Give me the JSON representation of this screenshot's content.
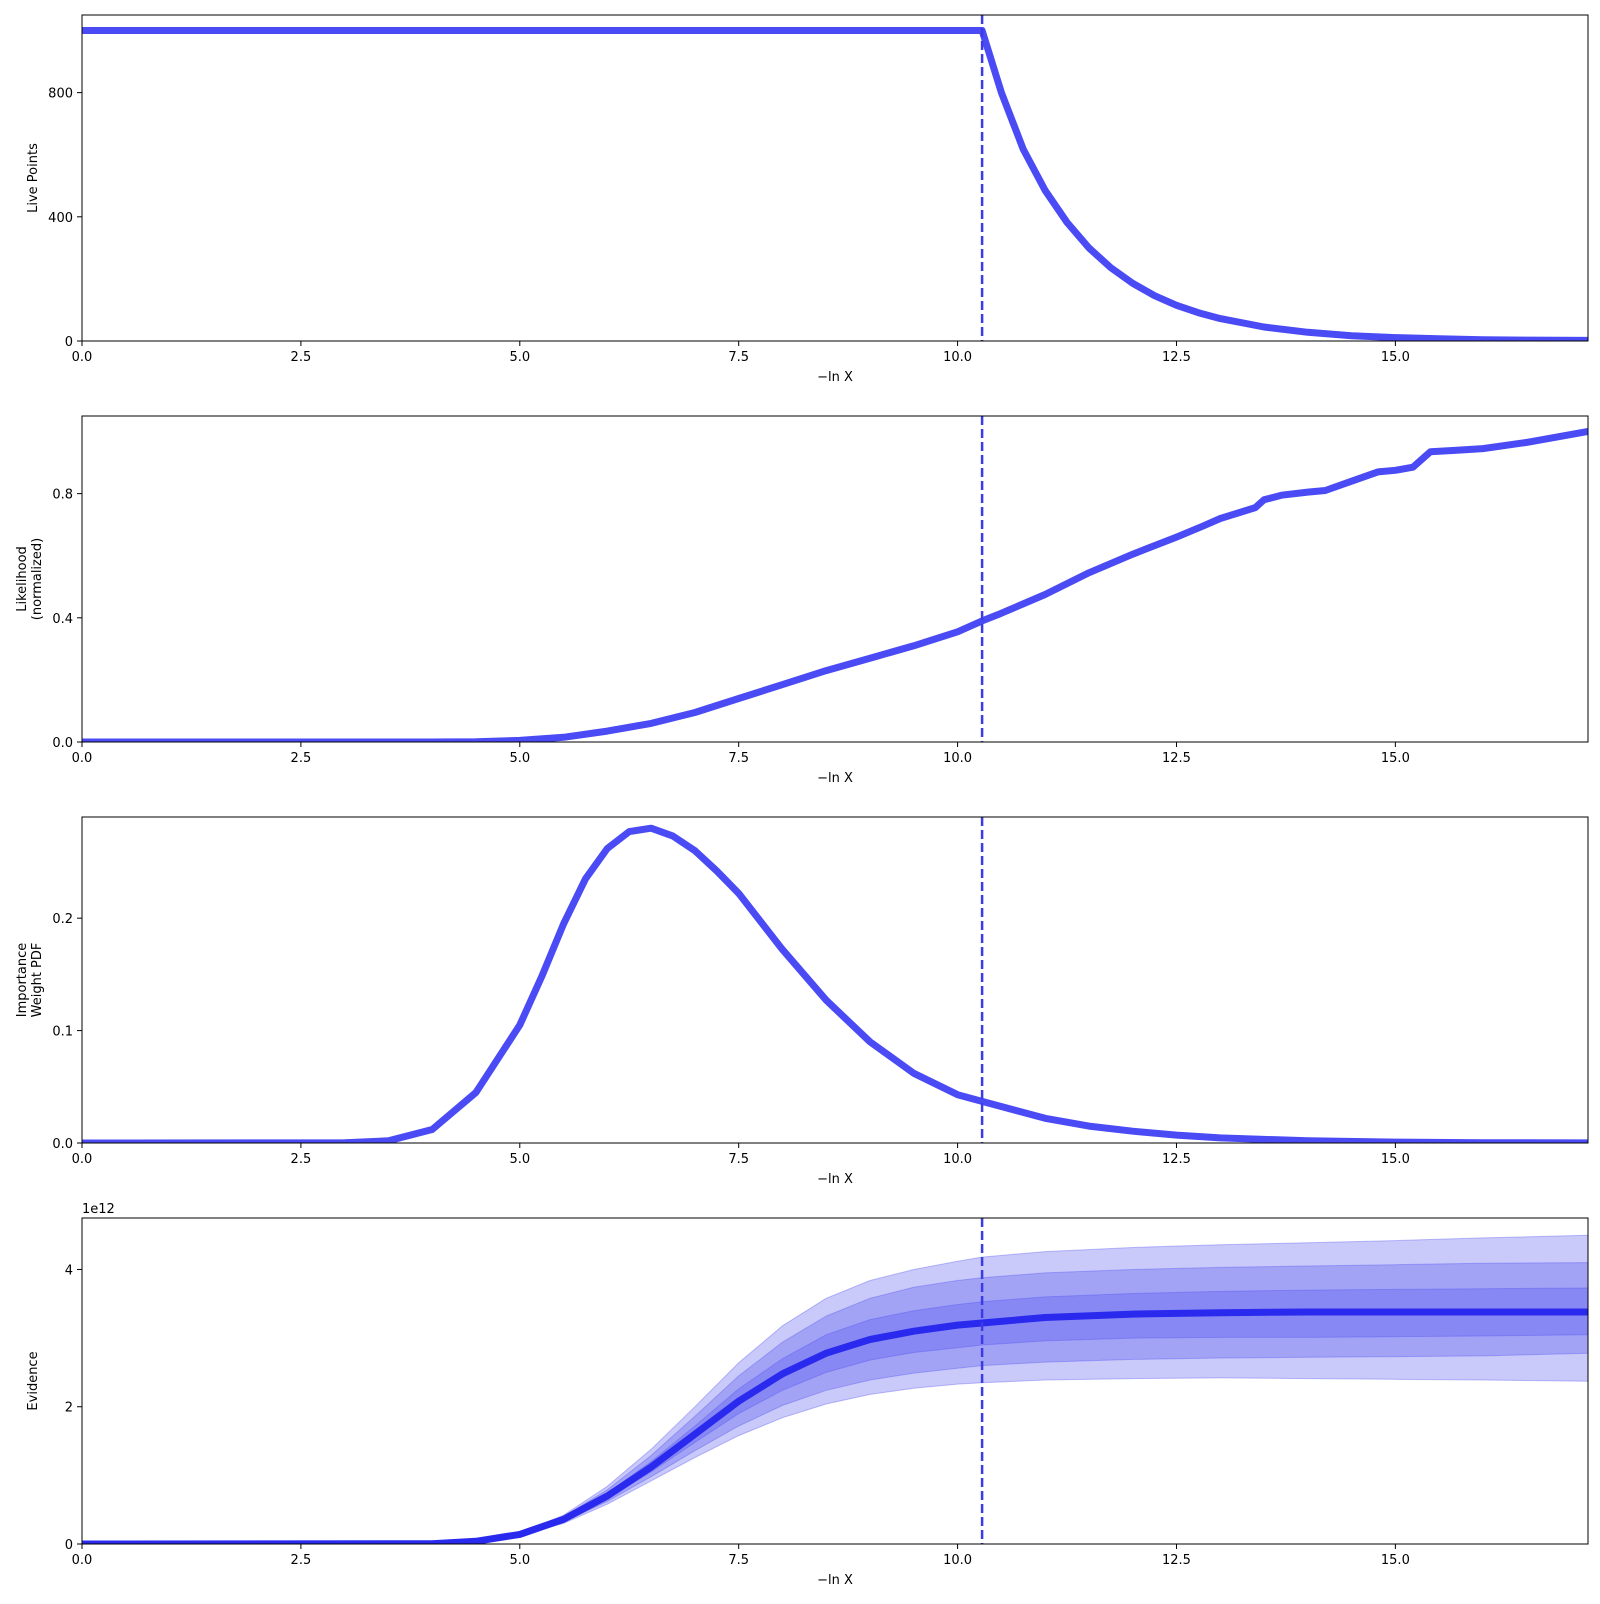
{
  "colors": {
    "line": "#4b4bf5",
    "line_dark": "#2a2aef",
    "band": "#4d4df0",
    "vline": "#3c3ce6",
    "axis": "#000000"
  },
  "chart_data": [
    {
      "type": "line",
      "ylabel": [
        "Live Points"
      ],
      "xlabel": "−ln X",
      "xlim": [
        0,
        17.2
      ],
      "ylim": [
        0,
        1050
      ],
      "xticks": [
        "0.0",
        "2.5",
        "5.0",
        "7.5",
        "10.0",
        "12.5",
        "15.0"
      ],
      "xtick_values": [
        0,
        2.5,
        5,
        7.5,
        10,
        12.5,
        15
      ],
      "yticks": [
        "0",
        "400",
        "800"
      ],
      "ytick_values": [
        0,
        400,
        800
      ],
      "vline_x": 10.28,
      "series": [
        {
          "x": [
            0,
            10.28,
            10.5,
            10.75,
            11.0,
            11.25,
            11.5,
            11.75,
            12.0,
            12.25,
            12.5,
            12.75,
            13.0,
            13.5,
            14.0,
            14.5,
            15.0,
            15.5,
            16.0,
            16.5,
            17.2
          ],
          "y": [
            1000,
            1000,
            800,
            617,
            485,
            382,
            300,
            236,
            186,
            146,
            115,
            91,
            72,
            45,
            28,
            17,
            11,
            7,
            4,
            3,
            2
          ]
        }
      ]
    },
    {
      "type": "line",
      "ylabel": [
        "Likelihood",
        "(normalized)"
      ],
      "xlabel": "−ln X",
      "xlim": [
        0,
        17.2
      ],
      "ylim": [
        0,
        1.05
      ],
      "xticks": [
        "0.0",
        "2.5",
        "5.0",
        "7.5",
        "10.0",
        "12.5",
        "15.0"
      ],
      "xtick_values": [
        0,
        2.5,
        5,
        7.5,
        10,
        12.5,
        15
      ],
      "yticks": [
        "0.0",
        "0.4",
        "0.8"
      ],
      "ytick_values": [
        0,
        0.4,
        0.8
      ],
      "vline_x": 10.28,
      "series": [
        {
          "x": [
            0,
            4.0,
            4.5,
            5.0,
            5.5,
            6.0,
            6.5,
            7.0,
            7.5,
            8.0,
            8.5,
            9.0,
            9.5,
            10.0,
            10.28,
            10.5,
            11.0,
            11.5,
            12.0,
            12.5,
            12.8,
            13.0,
            13.4,
            13.5,
            13.7,
            14.0,
            14.2,
            14.5,
            14.8,
            15.0,
            15.2,
            15.4,
            15.7,
            16.0,
            16.5,
            17.2
          ],
          "y": [
            0,
            0,
            0.001,
            0.005,
            0.015,
            0.035,
            0.06,
            0.095,
            0.14,
            0.185,
            0.23,
            0.27,
            0.31,
            0.355,
            0.39,
            0.415,
            0.475,
            0.545,
            0.605,
            0.66,
            0.695,
            0.72,
            0.755,
            0.78,
            0.795,
            0.805,
            0.81,
            0.84,
            0.87,
            0.875,
            0.885,
            0.935,
            0.94,
            0.945,
            0.965,
            1.0
          ]
        }
      ]
    },
    {
      "type": "line",
      "ylabel": [
        "Importance",
        "Weight PDF"
      ],
      "xlabel": "−ln X",
      "xlim": [
        0,
        17.2
      ],
      "ylim": [
        0,
        0.29
      ],
      "xticks": [
        "0.0",
        "2.5",
        "5.0",
        "7.5",
        "10.0",
        "12.5",
        "15.0"
      ],
      "xtick_values": [
        0,
        2.5,
        5,
        7.5,
        10,
        12.5,
        15
      ],
      "yticks": [
        "0.0",
        "0.1",
        "0.2"
      ],
      "ytick_values": [
        0,
        0.1,
        0.2
      ],
      "vline_x": 10.28,
      "series": [
        {
          "x": [
            0,
            3.0,
            3.5,
            4.0,
            4.5,
            5.0,
            5.25,
            5.5,
            5.75,
            6.0,
            6.25,
            6.5,
            6.75,
            7.0,
            7.25,
            7.5,
            8.0,
            8.5,
            9.0,
            9.5,
            10.0,
            10.28,
            11.0,
            11.5,
            12.0,
            12.5,
            13.0,
            14.0,
            15.0,
            16.0,
            17.2
          ],
          "y": [
            0,
            0.0002,
            0.002,
            0.012,
            0.045,
            0.105,
            0.148,
            0.195,
            0.235,
            0.262,
            0.277,
            0.28,
            0.273,
            0.26,
            0.242,
            0.222,
            0.172,
            0.127,
            0.09,
            0.062,
            0.043,
            0.037,
            0.022,
            0.015,
            0.0105,
            0.007,
            0.0045,
            0.002,
            0.0008,
            0.0003,
            0.0001
          ]
        }
      ]
    },
    {
      "type": "area",
      "ylabel": [
        "Evidence"
      ],
      "xlabel": "−ln X",
      "offset_label": "1e12",
      "xlim": [
        0,
        17.2
      ],
      "ylim": [
        0,
        4.75
      ],
      "xticks": [
        "0.0",
        "2.5",
        "5.0",
        "7.5",
        "10.0",
        "12.5",
        "15.0"
      ],
      "xtick_values": [
        0,
        2.5,
        5,
        7.5,
        10,
        12.5,
        15
      ],
      "yticks": [
        "0",
        "2",
        "4"
      ],
      "ytick_values": [
        0,
        2,
        4
      ],
      "vline_x": 10.28,
      "x": [
        0,
        4.0,
        4.5,
        5.0,
        5.5,
        6.0,
        6.5,
        7.0,
        7.5,
        8.0,
        8.5,
        9.0,
        9.5,
        10.0,
        10.28,
        11.0,
        12.0,
        13.0,
        14.0,
        15.0,
        16.0,
        17.2
      ],
      "median": [
        0,
        0.005,
        0.04,
        0.14,
        0.36,
        0.7,
        1.12,
        1.6,
        2.08,
        2.48,
        2.78,
        2.98,
        3.1,
        3.19,
        3.22,
        3.3,
        3.35,
        3.37,
        3.38,
        3.38,
        3.38,
        3.38
      ],
      "band_1_low": [
        0,
        0.005,
        0.039,
        0.135,
        0.34,
        0.66,
        1.05,
        1.48,
        1.9,
        2.24,
        2.5,
        2.68,
        2.79,
        2.86,
        2.9,
        2.96,
        3.0,
        3.01,
        3.01,
        3.02,
        3.03,
        3.05
      ],
      "band_1_high": [
        0,
        0.005,
        0.041,
        0.145,
        0.38,
        0.74,
        1.2,
        1.72,
        2.26,
        2.7,
        3.05,
        3.27,
        3.4,
        3.49,
        3.53,
        3.6,
        3.65,
        3.68,
        3.7,
        3.71,
        3.72,
        3.73
      ],
      "band_2_low": [
        0,
        0.004,
        0.037,
        0.13,
        0.32,
        0.62,
        0.98,
        1.36,
        1.72,
        2.02,
        2.24,
        2.39,
        2.49,
        2.56,
        2.6,
        2.65,
        2.69,
        2.71,
        2.72,
        2.73,
        2.74,
        2.78
      ],
      "band_2_high": [
        0,
        0.006,
        0.043,
        0.15,
        0.4,
        0.79,
        1.29,
        1.86,
        2.45,
        2.94,
        3.32,
        3.58,
        3.74,
        3.84,
        3.88,
        3.95,
        4.0,
        4.03,
        4.05,
        4.07,
        4.09,
        4.1
      ],
      "band_3_low": [
        0,
        0.004,
        0.035,
        0.125,
        0.3,
        0.58,
        0.92,
        1.26,
        1.58,
        1.84,
        2.04,
        2.18,
        2.27,
        2.33,
        2.35,
        2.39,
        2.41,
        2.42,
        2.41,
        2.4,
        2.39,
        2.37
      ],
      "band_3_high": [
        0,
        0.006,
        0.045,
        0.16,
        0.42,
        0.84,
        1.38,
        2.0,
        2.64,
        3.18,
        3.58,
        3.84,
        4.0,
        4.12,
        4.18,
        4.26,
        4.32,
        4.36,
        4.39,
        4.42,
        4.46,
        4.5
      ]
    }
  ]
}
